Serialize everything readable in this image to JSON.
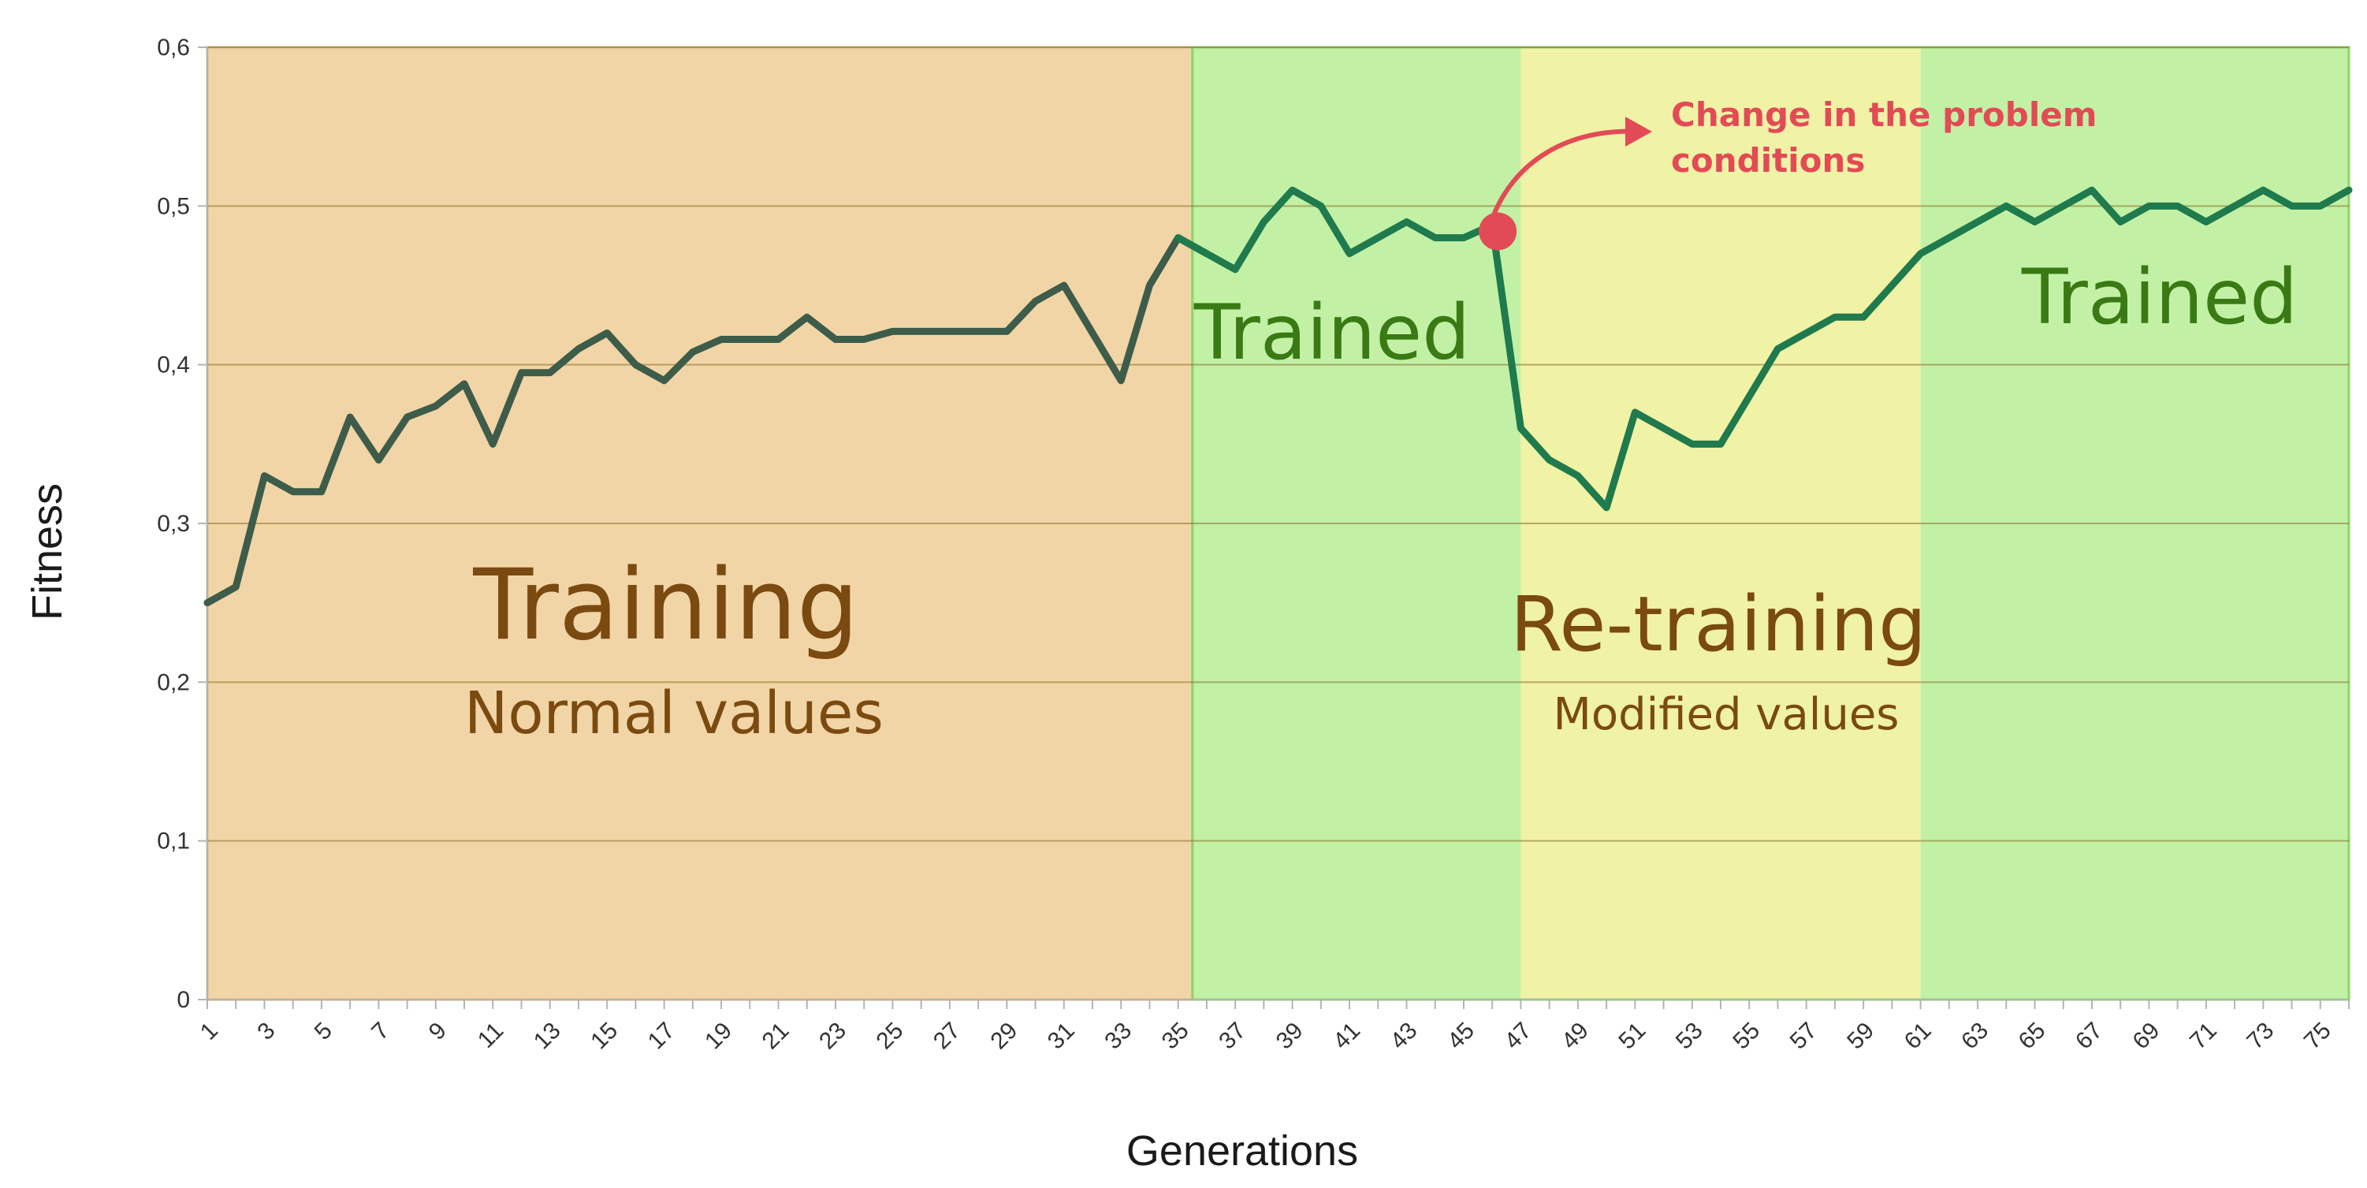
{
  "chart_data": {
    "type": "line",
    "title": "",
    "xlabel": "Generations",
    "ylabel": "Fitness",
    "xlim": [
      1,
      76
    ],
    "ylim": [
      0,
      0.6
    ],
    "y_ticks": [
      {
        "value": 0,
        "label": "0"
      },
      {
        "value": 0.1,
        "label": "0,1"
      },
      {
        "value": 0.2,
        "label": "0,2"
      },
      {
        "value": 0.3,
        "label": "0,3"
      },
      {
        "value": 0.4,
        "label": "0,4"
      },
      {
        "value": 0.5,
        "label": "0,5"
      },
      {
        "value": 0.6,
        "label": "0,6"
      }
    ],
    "x_tick_labels": [
      "1",
      "3",
      "5",
      "7",
      "9",
      "11",
      "13",
      "15",
      "17",
      "19",
      "21",
      "23",
      "25",
      "27",
      "29",
      "31",
      "33",
      "35",
      "37",
      "39",
      "41",
      "43",
      "45",
      "47",
      "49",
      "51",
      "53",
      "55",
      "57",
      "59",
      "61",
      "63",
      "65",
      "67",
      "69",
      "71",
      "73",
      "75"
    ],
    "grid": true,
    "colors": {
      "line_normal": "#3d5c4a",
      "line_trained": "#1f7a4d",
      "band_training": "#f1d5a6",
      "band_trained": "#c2f1a6",
      "band_retraining": "#f0f2a6",
      "text_training": "#7a4a10",
      "text_trained": "#3a7a14",
      "annotation": "#e24b55"
    },
    "x": [
      1,
      2,
      3,
      4,
      5,
      6,
      7,
      8,
      9,
      10,
      11,
      12,
      13,
      14,
      15,
      16,
      17,
      18,
      19,
      20,
      21,
      22,
      23,
      24,
      25,
      26,
      27,
      28,
      29,
      30,
      31,
      32,
      33,
      34,
      35,
      36,
      37,
      38,
      39,
      40,
      41,
      42,
      43,
      44,
      45,
      46,
      47,
      48,
      49,
      50,
      51,
      52,
      53,
      54,
      55,
      56,
      57,
      58,
      59,
      60,
      61,
      62,
      63,
      64,
      65,
      66,
      67,
      68,
      69,
      70,
      71,
      72,
      73,
      74,
      75,
      76
    ],
    "series": [
      {
        "name": "",
        "values": [
          0.25,
          0.26,
          0.33,
          0.32,
          0.32,
          0.367,
          0.34,
          0.367,
          0.374,
          0.388,
          0.35,
          0.395,
          0.395,
          0.41,
          0.42,
          0.4,
          0.39,
          0.408,
          0.416,
          0.416,
          0.416,
          0.43,
          0.416,
          0.416,
          0.421,
          0.421,
          0.421,
          0.421,
          0.421,
          0.44,
          0.45,
          0.42,
          0.39,
          0.45,
          0.48,
          0.47,
          0.46,
          0.49,
          0.51,
          0.5,
          0.47,
          0.48,
          0.49,
          0.48,
          0.48,
          0.488,
          0.36,
          0.34,
          0.33,
          0.31,
          0.37,
          0.36,
          0.35,
          0.35,
          0.38,
          0.41,
          0.42,
          0.43,
          0.43,
          0.45,
          0.47,
          0.48,
          0.49,
          0.5,
          0.49,
          0.5,
          0.51,
          0.49,
          0.5,
          0.5,
          0.49,
          0.5,
          0.51,
          0.5,
          0.5,
          0.51
        ]
      }
    ],
    "phases": [
      {
        "id": "training",
        "from": 1,
        "to": 35.5,
        "title": "Training",
        "subtitle": "Normal values"
      },
      {
        "id": "trained-1",
        "from": 35.5,
        "to": 47,
        "title": "Trained",
        "subtitle": ""
      },
      {
        "id": "retraining",
        "from": 47,
        "to": 61,
        "title": "Re-training",
        "subtitle": "Modified values"
      },
      {
        "id": "trained-2",
        "from": 61,
        "to": 76,
        "title": "Trained",
        "subtitle": ""
      }
    ],
    "annotation": {
      "x": 46,
      "y": 0.488,
      "line1": "Change in the problem",
      "line2": "conditions"
    }
  }
}
